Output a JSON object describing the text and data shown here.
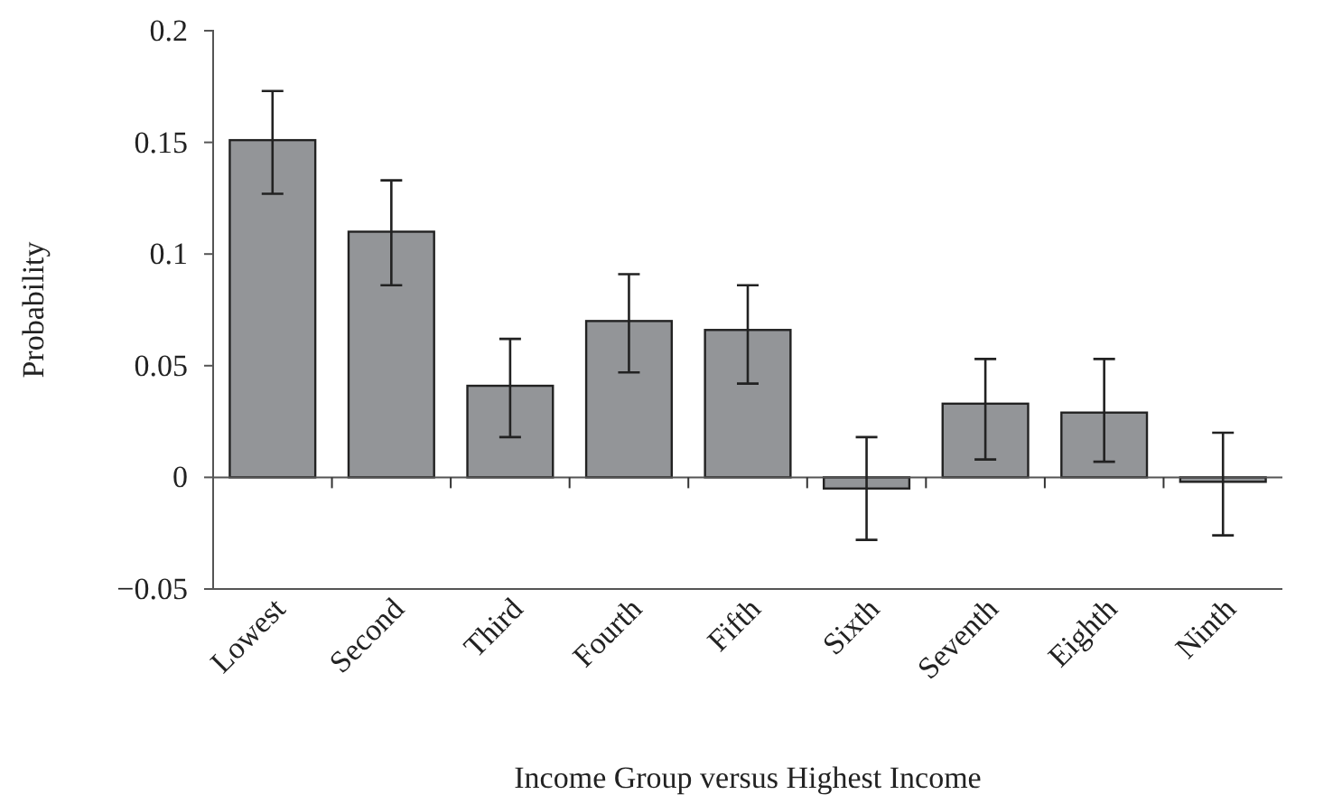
{
  "chart_data": {
    "type": "bar",
    "categories": [
      "Lowest",
      "Second",
      "Third",
      "Fourth",
      "Fifth",
      "Sixth",
      "Seventh",
      "Eighth",
      "Ninth"
    ],
    "values": [
      0.151,
      0.11,
      0.041,
      0.07,
      0.066,
      -0.005,
      0.033,
      0.029,
      -0.002
    ],
    "errors": [
      [
        0.127,
        0.173
      ],
      [
        0.086,
        0.133
      ],
      [
        0.018,
        0.062
      ],
      [
        0.047,
        0.091
      ],
      [
        0.042,
        0.086
      ],
      [
        -0.028,
        0.018
      ],
      [
        0.008,
        0.053
      ],
      [
        0.007,
        0.053
      ],
      [
        -0.026,
        0.02
      ]
    ],
    "color": "#939598",
    "xlabel": "Income Group versus Highest Income",
    "ylabel": "Probability",
    "ylim": [
      -0.05,
      0.2
    ],
    "yticks": [
      {
        "value": -0.05,
        "label": "−0.05"
      },
      0,
      0.05,
      0.1,
      0.15,
      0.2
    ]
  }
}
